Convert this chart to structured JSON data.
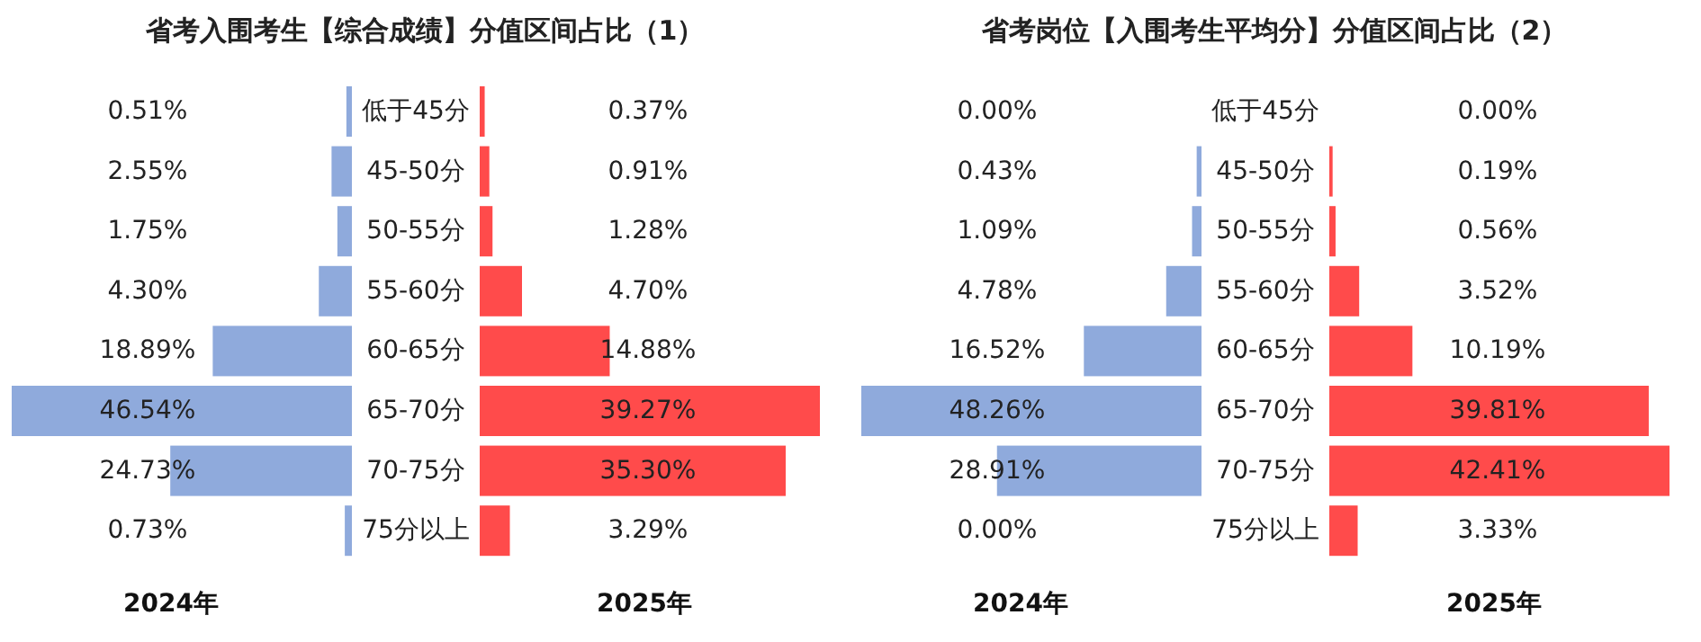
{
  "chart_data": [
    {
      "type": "bar",
      "orientation": "horizontal",
      "title": "省考入围考生【综合成绩】分值区间占比（1）",
      "categories": [
        "低于45分",
        "45-50分",
        "50-55分",
        "55-60分",
        "60-65分",
        "65-70分",
        "70-75分",
        "75分以上"
      ],
      "series": [
        {
          "name": "2024年",
          "color": "#8faadc",
          "values": [
            0.51,
            2.55,
            1.75,
            4.3,
            18.89,
            46.54,
            24.73,
            0.73
          ],
          "value_labels": [
            "0.51%",
            "2.55%",
            "1.75%",
            "4.30%",
            "18.89%",
            "46.54%",
            "24.73%",
            "0.73%"
          ]
        }
      ]
    },
    {
      "type": "bar",
      "orientation": "horizontal",
      "categories": [
        null,
        null,
        null,
        null,
        null,
        null,
        null,
        null
      ],
      "series": [
        {
          "name": "2025年",
          "color": "#ff4b4b",
          "values": [
            0.37,
            0.91,
            1.28,
            4.7,
            14.88,
            39.27,
            35.3,
            3.29
          ],
          "value_labels": [
            "0.37%",
            "0.91%",
            "1.28%",
            "4.70%",
            "14.88%",
            "39.27%",
            "35.30%",
            "3.29%"
          ]
        }
      ]
    },
    {
      "type": "bar",
      "orientation": "horizontal",
      "title": "省考岗位【入围考生平均分】分值区间占比（2）",
      "categories": [
        "低于45分",
        "45-50分",
        "50-55分",
        "55-60分",
        "60-65分",
        "65-70分",
        "70-75分",
        "75分以上"
      ],
      "series": [
        {
          "name": "2024年",
          "color": "#8faadc",
          "values": [
            0,
            0.43,
            1.09,
            4.78,
            16.52,
            48.26,
            28.91,
            0
          ],
          "value_labels": [
            "0.00%",
            "0.43%",
            "1.09%",
            "4.78%",
            "16.52%",
            "48.26%",
            "28.91%",
            "0.00%"
          ]
        }
      ]
    },
    {
      "type": "bar",
      "orientation": "horizontal",
      "categories": [
        null,
        null,
        null,
        null,
        null,
        null,
        null,
        null
      ],
      "series": [
        {
          "name": "2025年",
          "color": "#ff4b4b",
          "values": [
            0,
            0.19,
            0.56,
            3.52,
            10.19,
            39.81,
            42.41,
            3.33
          ],
          "value_labels": [
            "0.00%",
            "0.19%",
            "0.56%",
            "3.52%",
            "10.19%",
            "39.81%",
            "42.41%",
            "3.33%"
          ]
        }
      ]
    }
  ]
}
